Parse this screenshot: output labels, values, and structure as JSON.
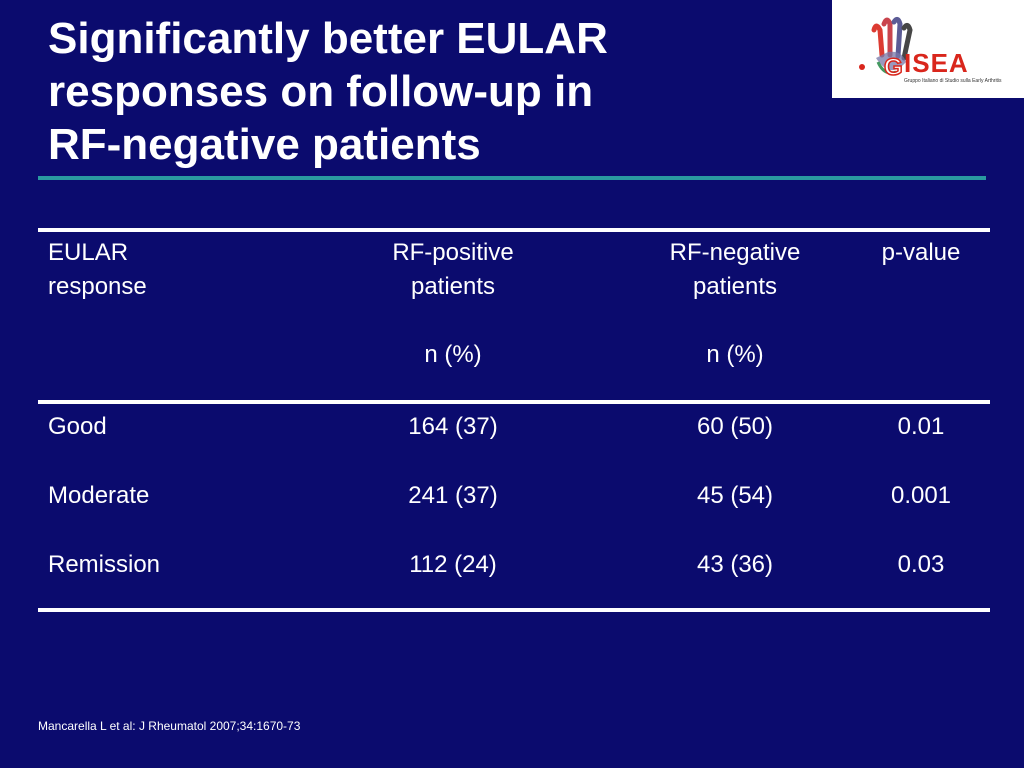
{
  "slide": {
    "title_lines": [
      "Significantly better EULAR",
      "responses on follow-up in",
      "RF-negative patients"
    ],
    "source": "Mancarella L et al: J Rheumatol 2007;34:1670-73"
  },
  "logo": {
    "text": "ISEA",
    "letter_g": "G",
    "tagline": "Gruppo Italiano di Studio sulla Early Arthritis"
  },
  "table": {
    "headers": {
      "col1": [
        "EULAR",
        "response"
      ],
      "col2": [
        "RF-positive",
        "patients",
        "",
        "n (%)"
      ],
      "col3": [
        "RF-negative",
        "patients",
        "",
        "n (%)"
      ],
      "col4": [
        "p-value"
      ]
    },
    "rows": [
      {
        "response": "Good",
        "rf_pos": "164 (37)",
        "rf_neg": "60 (50)",
        "p": "0.01"
      },
      {
        "response": "Moderate",
        "rf_pos": "241 (37)",
        "rf_neg": "45 (54)",
        "p": "0.001"
      },
      {
        "response": "Remission",
        "rf_pos": "112 (24)",
        "rf_neg": "43 (36)",
        "p": "0.03"
      }
    ]
  },
  "colors": {
    "background": "#0b0b6e",
    "title_rule": "#2a9aa0",
    "logo_red": "#d9261c"
  }
}
